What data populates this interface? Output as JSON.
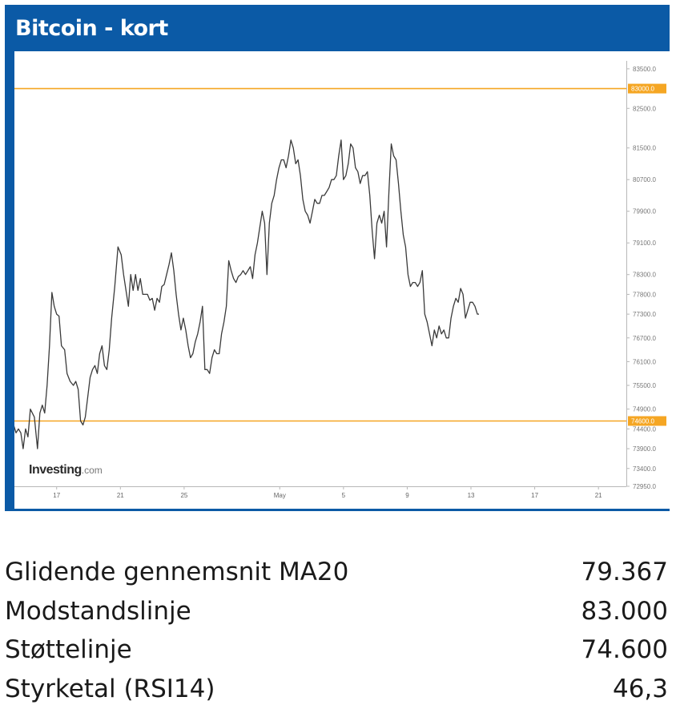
{
  "header": {
    "title": "Bitcoin - kort"
  },
  "watermark": {
    "brand": "Investing",
    "suffix": ".com"
  },
  "colors": {
    "panel": "#0b5aa6",
    "line": "#3a3a3a",
    "level": "#f5a623"
  },
  "stats": [
    {
      "label": "Glidende gennemsnit MA20",
      "value": "79.367"
    },
    {
      "label": "Modstandslinje",
      "value": "83.000"
    },
    {
      "label": "Støttelinje",
      "value": "74.600"
    },
    {
      "label": "Styrketal (RSI14)",
      "value": "46,3"
    }
  ],
  "chart_data": {
    "type": "line",
    "title": "Bitcoin - kort",
    "xlabel": "",
    "ylabel": "",
    "grid": false,
    "x_ticks": [
      {
        "label": "17",
        "day": 3
      },
      {
        "label": "21",
        "day": 7
      },
      {
        "label": "25",
        "day": 11
      },
      {
        "label": "May",
        "day": 17
      },
      {
        "label": "5",
        "day": 21
      },
      {
        "label": "9",
        "day": 25
      },
      {
        "label": "13",
        "day": 29
      },
      {
        "label": "17",
        "day": 33
      },
      {
        "label": "21",
        "day": 37
      }
    ],
    "y_ticks": [
      "83500.0",
      "82500.0",
      "81500.0",
      "80700.0",
      "79900.0",
      "79100.0",
      "78300.0",
      "77800.0",
      "77300.0",
      "76700.0",
      "76100.0",
      "75500.0",
      "74900.0",
      "74400.0",
      "73900.0",
      "73400.0",
      "72950.0"
    ],
    "ylim": [
      72950,
      83700
    ],
    "xlim": [
      0.35,
      38.75
    ],
    "levels": [
      {
        "label": "83000.0",
        "value": 83000
      },
      {
        "label": "74600.0",
        "value": 74600
      }
    ],
    "series": [
      {
        "values": [
          [
            0.3,
            74500
          ],
          [
            0.45,
            74300
          ],
          [
            0.6,
            74400
          ],
          [
            0.75,
            74300
          ],
          [
            0.9,
            73900
          ],
          [
            1.05,
            74400
          ],
          [
            1.2,
            74200
          ],
          [
            1.35,
            74900
          ],
          [
            1.6,
            74700
          ],
          [
            1.8,
            73900
          ],
          [
            1.95,
            74800
          ],
          [
            2.1,
            75000
          ],
          [
            2.25,
            74800
          ],
          [
            2.4,
            75500
          ],
          [
            2.55,
            76500
          ],
          [
            2.7,
            77850
          ],
          [
            2.85,
            77500
          ],
          [
            3.0,
            77300
          ],
          [
            3.15,
            77250
          ],
          [
            3.3,
            76500
          ],
          [
            3.5,
            76400
          ],
          [
            3.65,
            75800
          ],
          [
            3.85,
            75600
          ],
          [
            4.05,
            75500
          ],
          [
            4.2,
            75600
          ],
          [
            4.35,
            75400
          ],
          [
            4.5,
            74600
          ],
          [
            4.65,
            74500
          ],
          [
            4.8,
            74700
          ],
          [
            4.95,
            75200
          ],
          [
            5.1,
            75700
          ],
          [
            5.25,
            75900
          ],
          [
            5.4,
            76000
          ],
          [
            5.55,
            75800
          ],
          [
            5.7,
            76300
          ],
          [
            5.85,
            76500
          ],
          [
            6.0,
            76000
          ],
          [
            6.15,
            75900
          ],
          [
            6.3,
            76400
          ],
          [
            6.45,
            77200
          ],
          [
            6.65,
            78000
          ],
          [
            6.85,
            79000
          ],
          [
            7.05,
            78800
          ],
          [
            7.2,
            78300
          ],
          [
            7.35,
            77900
          ],
          [
            7.5,
            77500
          ],
          [
            7.65,
            78300
          ],
          [
            7.8,
            77900
          ],
          [
            7.95,
            78300
          ],
          [
            8.1,
            77900
          ],
          [
            8.25,
            78200
          ],
          [
            8.4,
            77800
          ],
          [
            8.55,
            77800
          ],
          [
            8.7,
            77800
          ],
          [
            8.85,
            77650
          ],
          [
            9.0,
            77700
          ],
          [
            9.15,
            77400
          ],
          [
            9.3,
            77700
          ],
          [
            9.45,
            77600
          ],
          [
            9.6,
            78000
          ],
          [
            9.75,
            78050
          ],
          [
            9.9,
            78300
          ],
          [
            10.05,
            78550
          ],
          [
            10.2,
            78850
          ],
          [
            10.35,
            78400
          ],
          [
            10.5,
            77800
          ],
          [
            10.65,
            77300
          ],
          [
            10.8,
            76900
          ],
          [
            10.95,
            77200
          ],
          [
            11.1,
            76900
          ],
          [
            11.25,
            76500
          ],
          [
            11.4,
            76200
          ],
          [
            11.55,
            76300
          ],
          [
            11.7,
            76600
          ],
          [
            11.85,
            76800
          ],
          [
            12.0,
            77100
          ],
          [
            12.15,
            77500
          ],
          [
            12.3,
            75900
          ],
          [
            12.45,
            75900
          ],
          [
            12.6,
            75800
          ],
          [
            12.75,
            76200
          ],
          [
            12.9,
            76400
          ],
          [
            13.05,
            76300
          ],
          [
            13.2,
            76300
          ],
          [
            13.35,
            76800
          ],
          [
            13.5,
            77100
          ],
          [
            13.65,
            77500
          ],
          [
            13.8,
            78650
          ],
          [
            13.95,
            78400
          ],
          [
            14.1,
            78200
          ],
          [
            14.25,
            78100
          ],
          [
            14.4,
            78250
          ],
          [
            14.55,
            78300
          ],
          [
            14.7,
            78400
          ],
          [
            14.85,
            78300
          ],
          [
            15.0,
            78400
          ],
          [
            15.15,
            78500
          ],
          [
            15.3,
            78200
          ],
          [
            15.45,
            78800
          ],
          [
            15.6,
            79100
          ],
          [
            15.75,
            79500
          ],
          [
            15.9,
            79900
          ],
          [
            16.05,
            79600
          ],
          [
            16.2,
            78300
          ],
          [
            16.35,
            79600
          ],
          [
            16.5,
            80100
          ],
          [
            16.65,
            80300
          ],
          [
            16.8,
            80700
          ],
          [
            16.95,
            81000
          ],
          [
            17.1,
            81200
          ],
          [
            17.25,
            81200
          ],
          [
            17.4,
            81000
          ],
          [
            17.55,
            81300
          ],
          [
            17.7,
            81700
          ],
          [
            17.85,
            81500
          ],
          [
            18.0,
            81100
          ],
          [
            18.15,
            81200
          ],
          [
            18.3,
            80800
          ],
          [
            18.45,
            80200
          ],
          [
            18.6,
            79900
          ],
          [
            18.75,
            79800
          ],
          [
            18.9,
            79600
          ],
          [
            19.05,
            79900
          ],
          [
            19.2,
            80200
          ],
          [
            19.35,
            80100
          ],
          [
            19.5,
            80100
          ],
          [
            19.65,
            80300
          ],
          [
            19.8,
            80300
          ],
          [
            19.95,
            80400
          ],
          [
            20.1,
            80500
          ],
          [
            20.25,
            80700
          ],
          [
            20.4,
            80700
          ],
          [
            20.55,
            80800
          ],
          [
            20.7,
            81300
          ],
          [
            20.85,
            81700
          ],
          [
            21.0,
            80700
          ],
          [
            21.15,
            80800
          ],
          [
            21.3,
            81100
          ],
          [
            21.45,
            81600
          ],
          [
            21.6,
            81500
          ],
          [
            21.75,
            81000
          ],
          [
            21.9,
            80900
          ],
          [
            22.05,
            80600
          ],
          [
            22.2,
            80800
          ],
          [
            22.35,
            80800
          ],
          [
            22.5,
            80900
          ],
          [
            22.65,
            80300
          ],
          [
            22.8,
            79400
          ],
          [
            22.95,
            78700
          ],
          [
            23.1,
            79600
          ],
          [
            23.25,
            79800
          ],
          [
            23.4,
            79600
          ],
          [
            23.55,
            79900
          ],
          [
            23.7,
            79000
          ],
          [
            23.85,
            80400
          ],
          [
            24.0,
            81600
          ],
          [
            24.15,
            81300
          ],
          [
            24.3,
            81200
          ],
          [
            24.45,
            80600
          ],
          [
            24.6,
            79900
          ],
          [
            24.75,
            79300
          ],
          [
            24.9,
            79000
          ],
          [
            25.05,
            78300
          ],
          [
            25.2,
            78000
          ],
          [
            25.35,
            78100
          ],
          [
            25.5,
            78100
          ],
          [
            25.65,
            78000
          ],
          [
            25.8,
            78100
          ],
          [
            25.95,
            78400
          ],
          [
            26.1,
            77300
          ],
          [
            26.25,
            77100
          ],
          [
            26.4,
            76800
          ],
          [
            26.55,
            76500
          ],
          [
            26.7,
            76900
          ],
          [
            26.85,
            76700
          ],
          [
            27.0,
            77000
          ],
          [
            27.15,
            76800
          ],
          [
            27.3,
            76900
          ],
          [
            27.45,
            76700
          ],
          [
            27.6,
            76700
          ],
          [
            27.75,
            77200
          ],
          [
            27.9,
            77500
          ],
          [
            28.05,
            77700
          ],
          [
            28.2,
            77600
          ],
          [
            28.35,
            77950
          ],
          [
            28.5,
            77800
          ],
          [
            28.65,
            77200
          ],
          [
            28.8,
            77400
          ],
          [
            28.95,
            77600
          ],
          [
            29.1,
            77600
          ],
          [
            29.25,
            77500
          ],
          [
            29.4,
            77300
          ],
          [
            29.5,
            77300
          ]
        ]
      }
    ]
  }
}
